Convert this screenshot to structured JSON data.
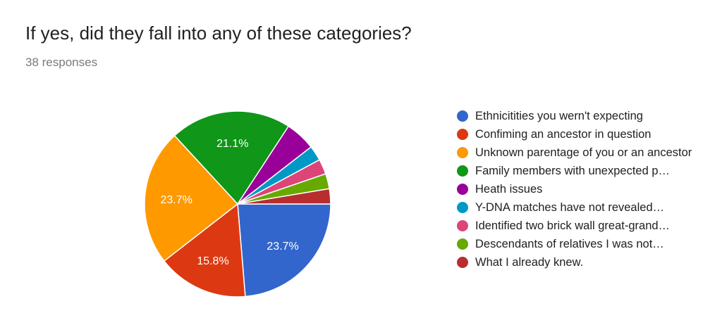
{
  "header": {
    "title": "If yes, did they fall into any of these categories?",
    "subtitle": "38 responses"
  },
  "chart_data": {
    "type": "pie",
    "categories": [
      "Ethnicitities you wern't expecting",
      "Confiming an ancestor in question",
      "Unknown parentage of you or an ancestor",
      "Family members with unexpected p…",
      "Heath issues",
      "Y-DNA matches have not revealed…",
      "Identified two brick wall great-grand…",
      "Descendants of relatives I was not…",
      "What I already knew."
    ],
    "values": [
      9,
      6,
      9,
      8,
      2,
      1,
      1,
      1,
      1
    ],
    "labels": [
      "23.7%",
      "15.8%",
      "23.7%",
      "21.1%",
      "",
      "",
      "",
      "",
      ""
    ],
    "colors": [
      "#3366cc",
      "#dc3912",
      "#ff9900",
      "#109618",
      "#990099",
      "#0099c6",
      "#dd4477",
      "#66aa00",
      "#b82e2e"
    ],
    "legend_position": "right",
    "start": "3 o'clock",
    "direction": "clockwise"
  },
  "legend": {
    "items": [
      {
        "label": "Ethnicitities you wern't expecting"
      },
      {
        "label": "Confiming an ancestor in question"
      },
      {
        "label": "Unknown parentage of you or an ancestor"
      },
      {
        "label": "Family members with unexpected p…"
      },
      {
        "label": "Heath issues"
      },
      {
        "label": "Y-DNA matches have not revealed…"
      },
      {
        "label": "Identified two brick wall great-grand…"
      },
      {
        "label": "Descendants of relatives I was not…"
      },
      {
        "label": "What I already knew."
      }
    ]
  }
}
